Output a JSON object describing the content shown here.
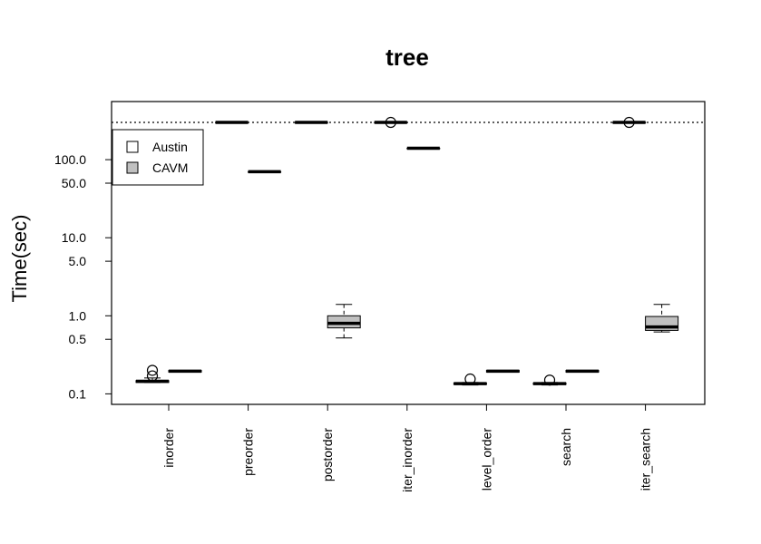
{
  "chart_data": {
    "type": "boxplot",
    "title": "tree",
    "ylabel": "Time(sec)",
    "xlabel": "",
    "y_scale": "log",
    "ylim": [
      0.075,
      700
    ],
    "y_ticks": [
      0.1,
      0.5,
      1,
      5,
      10,
      50,
      100
    ],
    "y_tick_labels": [
      "0.1",
      "0.5",
      "1.0",
      "5.0",
      "10.0",
      "50.0",
      "100.0"
    ],
    "timeout_line": 300,
    "categories": [
      "inorder",
      "preorder",
      "postorder",
      "iter_inorder",
      "level_order",
      "search",
      "iter_search"
    ],
    "legend": {
      "placement": "top-left"
    },
    "series": [
      {
        "name": "Austin",
        "color": "#ffffff",
        "boxes": [
          {
            "min": 0.14,
            "q1": 0.14,
            "median": 0.145,
            "q3": 0.148,
            "max": 0.16,
            "outliers": [
              0.2,
              0.17
            ]
          },
          {
            "min": 300,
            "q1": 300,
            "median": 300,
            "q3": 300,
            "max": 300,
            "outliers": []
          },
          {
            "min": 300,
            "q1": 300,
            "median": 300,
            "q3": 300,
            "max": 300,
            "outliers": []
          },
          {
            "min": 300,
            "q1": 300,
            "median": 300,
            "q3": 300,
            "max": 300,
            "outliers": [
              300
            ]
          },
          {
            "min": 0.13,
            "q1": 0.132,
            "median": 0.135,
            "q3": 0.138,
            "max": 0.14,
            "outliers": [
              0.155
            ]
          },
          {
            "min": 0.13,
            "q1": 0.132,
            "median": 0.135,
            "q3": 0.138,
            "max": 0.14,
            "outliers": [
              0.15
            ]
          },
          {
            "min": 300,
            "q1": 300,
            "median": 300,
            "q3": 300,
            "max": 300,
            "outliers": [
              300
            ]
          }
        ]
      },
      {
        "name": "CAVM",
        "color": "#c0c0c0",
        "boxes": [
          {
            "min": 0.19,
            "q1": 0.19,
            "median": 0.195,
            "q3": 0.2,
            "max": 0.2,
            "outliers": []
          },
          {
            "min": 70,
            "q1": 70,
            "median": 70,
            "q3": 70,
            "max": 70,
            "outliers": []
          },
          {
            "min": 0.52,
            "q1": 0.7,
            "median": 0.8,
            "q3": 1.0,
            "max": 1.4,
            "outliers": []
          },
          {
            "min": 140,
            "q1": 140,
            "median": 140,
            "q3": 140,
            "max": 140,
            "outliers": []
          },
          {
            "min": 0.19,
            "q1": 0.19,
            "median": 0.195,
            "q3": 0.2,
            "max": 0.2,
            "outliers": []
          },
          {
            "min": 0.19,
            "q1": 0.19,
            "median": 0.195,
            "q3": 0.2,
            "max": 0.2,
            "outliers": []
          },
          {
            "min": 0.62,
            "q1": 0.65,
            "median": 0.72,
            "q3": 0.98,
            "max": 1.4,
            "outliers": []
          }
        ]
      }
    ]
  }
}
